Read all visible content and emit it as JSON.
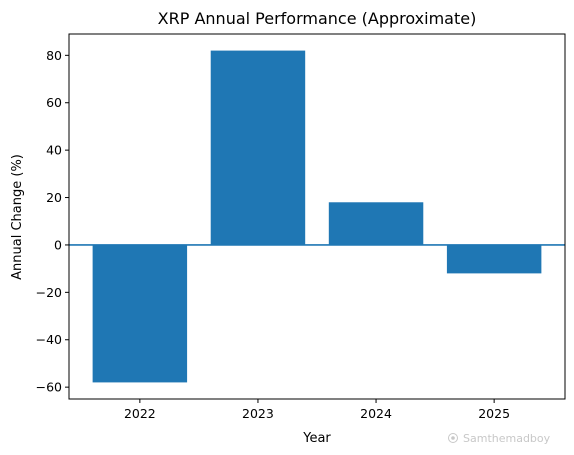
{
  "chart_data": {
    "type": "bar",
    "title": "XRP Annual Performance (Approximate)",
    "xlabel": "Year",
    "ylabel": "Annual Change (%)",
    "categories": [
      "2022",
      "2023",
      "2024",
      "2025"
    ],
    "values": [
      -58,
      82,
      18,
      -12
    ],
    "ylim": [
      -65,
      89
    ],
    "yticks": [
      -60,
      -40,
      -20,
      0,
      20,
      40,
      60,
      80
    ],
    "ytick_labels": [
      "−60",
      "−40",
      "−20",
      "0",
      "20",
      "40",
      "60",
      "80"
    ],
    "bar_color": "#1f77b4",
    "zero_line": true,
    "grid": false
  },
  "watermark": {
    "icon": "camera-icon",
    "text": "Samthemadboy"
  }
}
